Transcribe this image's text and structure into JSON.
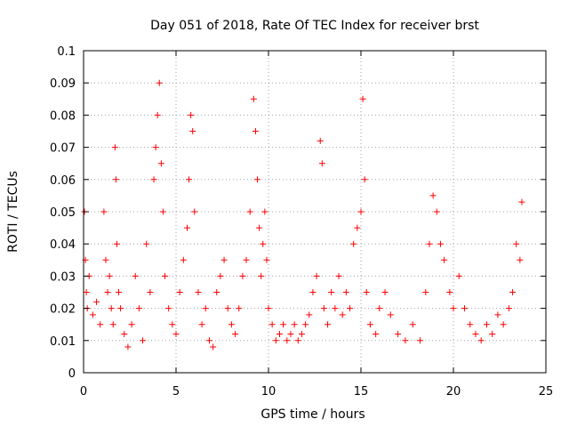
{
  "chart_data": {
    "type": "scatter",
    "title": "Day 051 of 2018, Rate Of TEC Index for receiver brst",
    "xlabel": "GPS time / hours",
    "ylabel": "ROTI / TECUs",
    "xlim": [
      0,
      25
    ],
    "ylim": [
      0,
      0.1
    ],
    "x_ticks": [
      "0",
      "5",
      "10",
      "15",
      "20",
      "25"
    ],
    "y_ticks": [
      "0",
      "0.01",
      "0.02",
      "0.03",
      "0.04",
      "0.05",
      "0.06",
      "0.07",
      "0.08",
      "0.09",
      "0.1"
    ],
    "grid": true,
    "marker": "+",
    "color": "#ff0000",
    "series": [
      {
        "x": [
          0.05,
          0.1,
          0.15,
          0.2,
          0.3,
          0.5,
          0.7,
          0.9,
          1.1,
          1.2,
          1.3,
          1.4,
          1.5,
          1.6,
          1.7,
          1.75,
          1.8,
          1.9,
          2.0,
          2.2,
          2.4,
          2.6,
          2.8,
          3.0,
          3.2,
          3.4,
          3.6,
          3.8,
          3.9,
          4.0,
          4.1,
          4.2,
          4.3,
          4.4,
          4.6,
          4.8,
          5.0,
          5.2,
          5.4,
          5.6,
          5.7,
          5.8,
          5.9,
          6.0,
          6.2,
          6.4,
          6.6,
          6.8,
          7.0,
          7.2,
          7.4,
          7.6,
          7.8,
          8.0,
          8.2,
          8.4,
          8.6,
          8.8,
          9.0,
          9.2,
          9.3,
          9.4,
          9.5,
          9.6,
          9.7,
          9.8,
          9.9,
          10.0,
          10.2,
          10.4,
          10.6,
          10.8,
          11.0,
          11.2,
          11.4,
          11.6,
          11.8,
          12.0,
          12.2,
          12.4,
          12.6,
          12.8,
          12.9,
          13.0,
          13.2,
          13.4,
          13.6,
          13.8,
          14.0,
          14.2,
          14.4,
          14.6,
          14.8,
          15.0,
          15.1,
          15.2,
          15.3,
          15.5,
          15.8,
          16.0,
          16.3,
          16.6,
          17.0,
          17.4,
          17.8,
          18.2,
          18.5,
          18.7,
          18.9,
          19.1,
          19.3,
          19.5,
          19.8,
          20.0,
          20.3,
          20.6,
          20.9,
          21.2,
          21.5,
          21.8,
          22.1,
          22.4,
          22.7,
          23.0,
          23.2,
          23.4,
          23.6,
          23.7
        ],
        "y": [
          0.05,
          0.035,
          0.025,
          0.02,
          0.03,
          0.018,
          0.022,
          0.015,
          0.05,
          0.035,
          0.025,
          0.03,
          0.02,
          0.015,
          0.07,
          0.06,
          0.04,
          0.025,
          0.02,
          0.012,
          0.008,
          0.015,
          0.03,
          0.02,
          0.01,
          0.04,
          0.025,
          0.06,
          0.07,
          0.08,
          0.09,
          0.065,
          0.05,
          0.03,
          0.02,
          0.015,
          0.012,
          0.025,
          0.035,
          0.045,
          0.06,
          0.08,
          0.075,
          0.05,
          0.025,
          0.015,
          0.02,
          0.01,
          0.008,
          0.025,
          0.03,
          0.035,
          0.02,
          0.015,
          0.012,
          0.02,
          0.03,
          0.035,
          0.05,
          0.085,
          0.075,
          0.06,
          0.045,
          0.03,
          0.04,
          0.05,
          0.035,
          0.02,
          0.015,
          0.01,
          0.012,
          0.015,
          0.01,
          0.012,
          0.015,
          0.01,
          0.012,
          0.015,
          0.018,
          0.025,
          0.03,
          0.072,
          0.065,
          0.02,
          0.015,
          0.025,
          0.02,
          0.03,
          0.018,
          0.025,
          0.02,
          0.04,
          0.045,
          0.05,
          0.085,
          0.06,
          0.025,
          0.015,
          0.012,
          0.02,
          0.025,
          0.018,
          0.012,
          0.01,
          0.015,
          0.01,
          0.025,
          0.04,
          0.055,
          0.05,
          0.04,
          0.035,
          0.025,
          0.02,
          0.03,
          0.02,
          0.015,
          0.012,
          0.01,
          0.015,
          0.012,
          0.018,
          0.015,
          0.02,
          0.025,
          0.04,
          0.035,
          0.053
        ]
      }
    ]
  }
}
